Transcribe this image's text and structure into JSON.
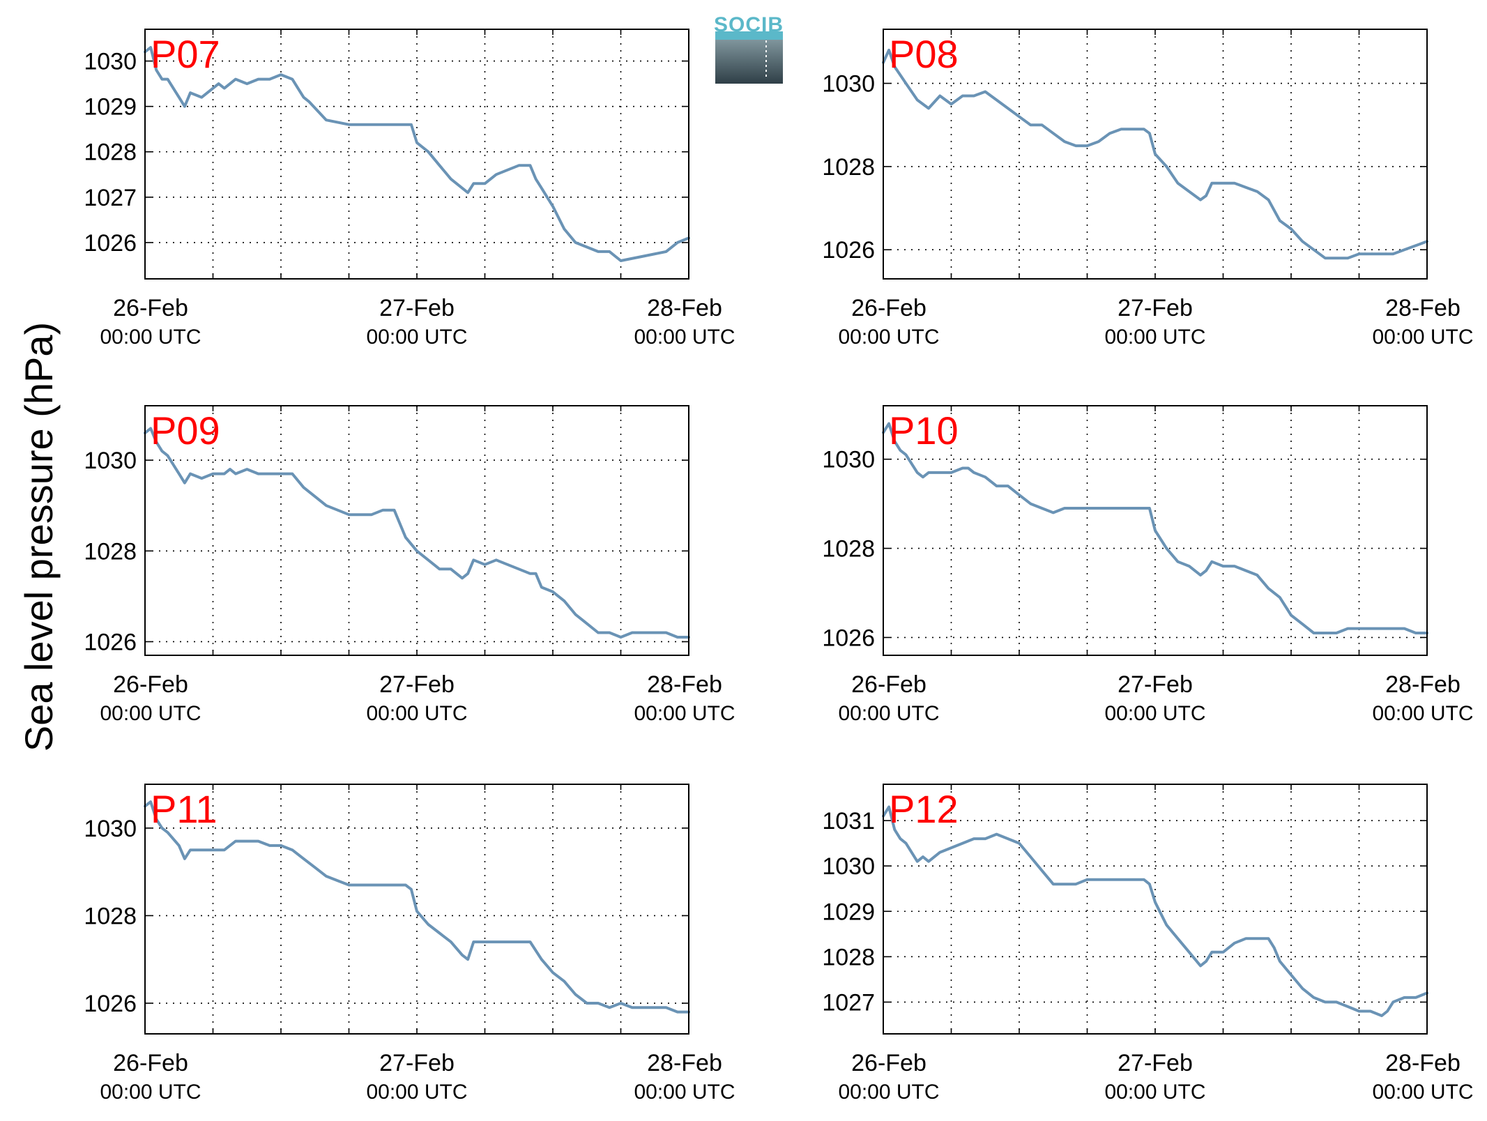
{
  "ylabel": "Sea level pressure (hPa)",
  "logo": {
    "text": "SOCIB"
  },
  "colors": {
    "line": "#6a93b5",
    "panel_label": "#ff0000",
    "logo_top": "#5bb8c9",
    "logo_bottom": "#2f3f47"
  },
  "x_tick_labels": [
    {
      "date": "26-Feb",
      "time": "00:00 UTC"
    },
    {
      "date": "27-Feb",
      "time": "00:00 UTC"
    },
    {
      "date": "28-Feb",
      "time": "00:00 UTC"
    }
  ],
  "chart_data": [
    {
      "type": "line",
      "panel_label": "P07",
      "x_range_hours": [
        0,
        48
      ],
      "ylim": [
        1025.2,
        1030.7
      ],
      "yticks": [
        1026,
        1027,
        1028,
        1029,
        1030
      ],
      "grid": true,
      "series": [
        {
          "x_hours": [
            0,
            0.5,
            1,
            1.5,
            2,
            3,
            3.5,
            4,
            5,
            6,
            6.5,
            7,
            8,
            9,
            10,
            11,
            12,
            13,
            14,
            14.5,
            16,
            18,
            20,
            22,
            23.5,
            24,
            25,
            26,
            27,
            28,
            28.5,
            29,
            30,
            31,
            32,
            33,
            34,
            34.5,
            35,
            36,
            37,
            38,
            39,
            40,
            41,
            41.5,
            42,
            44,
            46,
            47,
            48
          ],
          "y": [
            1030.2,
            1030.3,
            1029.8,
            1029.6,
            1029.6,
            1029.2,
            1029.0,
            1029.3,
            1029.2,
            1029.4,
            1029.5,
            1029.4,
            1029.6,
            1029.5,
            1029.6,
            1029.6,
            1029.7,
            1029.6,
            1029.2,
            1029.1,
            1028.7,
            1028.6,
            1028.6,
            1028.6,
            1028.6,
            1028.2,
            1028.0,
            1027.7,
            1027.4,
            1027.2,
            1027.1,
            1027.3,
            1027.3,
            1027.5,
            1027.6,
            1027.7,
            1027.7,
            1027.4,
            1027.2,
            1026.8,
            1026.3,
            1026.0,
            1025.9,
            1025.8,
            1025.8,
            1025.7,
            1025.6,
            1025.7,
            1025.8,
            1026.0,
            1026.1
          ]
        }
      ]
    },
    {
      "type": "line",
      "panel_label": "P08",
      "x_range_hours": [
        0,
        48
      ],
      "ylim": [
        1025.3,
        1031.3
      ],
      "yticks": [
        1026,
        1028,
        1030
      ],
      "grid": true,
      "series": [
        {
          "x_hours": [
            0,
            0.5,
            1,
            1.5,
            2,
            3,
            4,
            5,
            6,
            7,
            8,
            9,
            10,
            11,
            12,
            13,
            14,
            15,
            16,
            17,
            18,
            19,
            20,
            21,
            22,
            23,
            23.5,
            24,
            25,
            26,
            27,
            28,
            28.5,
            29,
            30,
            31,
            32,
            33,
            34,
            35,
            36,
            37,
            38,
            39,
            40,
            41,
            42,
            43,
            44,
            45,
            46,
            47,
            48
          ],
          "y": [
            1030.5,
            1030.8,
            1030.4,
            1030.2,
            1030.0,
            1029.6,
            1029.4,
            1029.7,
            1029.5,
            1029.7,
            1029.7,
            1029.8,
            1029.6,
            1029.4,
            1029.2,
            1029.0,
            1029.0,
            1028.8,
            1028.6,
            1028.5,
            1028.5,
            1028.6,
            1028.8,
            1028.9,
            1028.9,
            1028.9,
            1028.8,
            1028.3,
            1028.0,
            1027.6,
            1027.4,
            1027.2,
            1027.3,
            1027.6,
            1027.6,
            1027.6,
            1027.5,
            1027.4,
            1027.2,
            1026.7,
            1026.5,
            1026.2,
            1026.0,
            1025.8,
            1025.8,
            1025.8,
            1025.9,
            1025.9,
            1025.9,
            1025.9,
            1026.0,
            1026.1,
            1026.2
          ]
        }
      ]
    },
    {
      "type": "line",
      "panel_label": "P09",
      "x_range_hours": [
        0,
        48
      ],
      "ylim": [
        1025.7,
        1031.2
      ],
      "yticks": [
        1026,
        1028,
        1030
      ],
      "grid": true,
      "series": [
        {
          "x_hours": [
            0,
            0.5,
            1,
            1.5,
            2,
            3,
            3.5,
            4,
            5,
            6,
            7,
            7.5,
            8,
            9,
            10,
            12,
            13,
            14,
            15,
            16,
            17,
            18,
            19,
            20,
            21,
            21.5,
            22,
            23,
            24,
            25,
            26,
            27,
            28,
            28.5,
            29,
            30,
            31,
            32,
            33,
            34,
            34.5,
            35,
            36,
            37,
            38,
            39,
            40,
            41,
            42,
            43,
            44,
            45,
            46,
            47,
            48
          ],
          "y": [
            1030.6,
            1030.7,
            1030.4,
            1030.2,
            1030.1,
            1029.7,
            1029.5,
            1029.7,
            1029.6,
            1029.7,
            1029.7,
            1029.8,
            1029.7,
            1029.8,
            1029.7,
            1029.7,
            1029.7,
            1029.4,
            1029.2,
            1029.0,
            1028.9,
            1028.8,
            1028.8,
            1028.8,
            1028.9,
            1028.9,
            1028.9,
            1028.3,
            1028.0,
            1027.8,
            1027.6,
            1027.6,
            1027.4,
            1027.5,
            1027.8,
            1027.7,
            1027.8,
            1027.7,
            1027.6,
            1027.5,
            1027.5,
            1027.2,
            1027.1,
            1026.9,
            1026.6,
            1026.4,
            1026.2,
            1026.2,
            1026.1,
            1026.2,
            1026.2,
            1026.2,
            1026.2,
            1026.1,
            1026.1
          ]
        }
      ]
    },
    {
      "type": "line",
      "panel_label": "P10",
      "x_range_hours": [
        0,
        48
      ],
      "ylim": [
        1025.6,
        1031.2
      ],
      "yticks": [
        1026,
        1028,
        1030
      ],
      "grid": true,
      "series": [
        {
          "x_hours": [
            0,
            0.5,
            1,
            1.5,
            2,
            3,
            3.5,
            4,
            5,
            6,
            7,
            7.5,
            8,
            9,
            10,
            11,
            12,
            13,
            14,
            15,
            16,
            17,
            18,
            19,
            20,
            21,
            22,
            23,
            23.5,
            24,
            25,
            26,
            27,
            28,
            28.5,
            29,
            30,
            31,
            32,
            33,
            34,
            35,
            36,
            37,
            38,
            39,
            40,
            41,
            42,
            43,
            44,
            45,
            46,
            47,
            48
          ],
          "y": [
            1030.6,
            1030.8,
            1030.4,
            1030.2,
            1030.1,
            1029.7,
            1029.6,
            1029.7,
            1029.7,
            1029.7,
            1029.8,
            1029.8,
            1029.7,
            1029.6,
            1029.4,
            1029.4,
            1029.2,
            1029.0,
            1028.9,
            1028.8,
            1028.9,
            1028.9,
            1028.9,
            1028.9,
            1028.9,
            1028.9,
            1028.9,
            1028.9,
            1028.9,
            1028.4,
            1028.0,
            1027.7,
            1027.6,
            1027.4,
            1027.5,
            1027.7,
            1027.6,
            1027.6,
            1027.5,
            1027.4,
            1027.1,
            1026.9,
            1026.5,
            1026.3,
            1026.1,
            1026.1,
            1026.1,
            1026.2,
            1026.2,
            1026.2,
            1026.2,
            1026.2,
            1026.2,
            1026.1,
            1026.1
          ]
        }
      ]
    },
    {
      "type": "line",
      "panel_label": "P11",
      "x_range_hours": [
        0,
        48
      ],
      "ylim": [
        1025.3,
        1031.0
      ],
      "yticks": [
        1026,
        1028,
        1030
      ],
      "grid": true,
      "series": [
        {
          "x_hours": [
            0,
            0.5,
            1,
            1.5,
            2,
            3,
            3.5,
            4,
            5,
            6,
            6.5,
            7,
            8,
            9,
            10,
            11,
            12,
            13,
            14,
            15,
            16,
            17,
            18,
            19,
            20,
            21,
            22,
            23,
            23.5,
            24,
            25,
            26,
            27,
            28,
            28.5,
            29,
            30,
            31,
            32,
            33,
            34,
            35,
            36,
            37,
            38,
            39,
            40,
            41,
            42,
            43,
            44,
            45,
            46,
            47,
            48
          ],
          "y": [
            1030.5,
            1030.6,
            1030.2,
            1030.0,
            1029.9,
            1029.6,
            1029.3,
            1029.5,
            1029.5,
            1029.5,
            1029.5,
            1029.5,
            1029.7,
            1029.7,
            1029.7,
            1029.6,
            1029.6,
            1029.5,
            1029.3,
            1029.1,
            1028.9,
            1028.8,
            1028.7,
            1028.7,
            1028.7,
            1028.7,
            1028.7,
            1028.7,
            1028.6,
            1028.1,
            1027.8,
            1027.6,
            1027.4,
            1027.1,
            1027.0,
            1027.4,
            1027.4,
            1027.4,
            1027.4,
            1027.4,
            1027.4,
            1027.0,
            1026.7,
            1026.5,
            1026.2,
            1026.0,
            1026.0,
            1025.9,
            1026.0,
            1025.9,
            1025.9,
            1025.9,
            1025.9,
            1025.8,
            1025.8
          ]
        }
      ]
    },
    {
      "type": "line",
      "panel_label": "P12",
      "x_range_hours": [
        0,
        48
      ],
      "ylim": [
        1026.3,
        1031.8
      ],
      "yticks": [
        1027,
        1028,
        1029,
        1030,
        1031
      ],
      "grid": true,
      "series": [
        {
          "x_hours": [
            0,
            0.5,
            1,
            1.5,
            2,
            3,
            3.5,
            4,
            5,
            6,
            7,
            8,
            9,
            10,
            11,
            12,
            13,
            14,
            15,
            16,
            17,
            18,
            19,
            20,
            21,
            22,
            23,
            23.5,
            24,
            25,
            26,
            27,
            28,
            28.5,
            29,
            30,
            31,
            32,
            33,
            34,
            34.5,
            35,
            36,
            37,
            38,
            39,
            40,
            41,
            42,
            43,
            44,
            44.5,
            45,
            46,
            47,
            48
          ],
          "y": [
            1031.1,
            1031.3,
            1030.8,
            1030.6,
            1030.5,
            1030.1,
            1030.2,
            1030.1,
            1030.3,
            1030.4,
            1030.5,
            1030.6,
            1030.6,
            1030.7,
            1030.6,
            1030.5,
            1030.2,
            1029.9,
            1029.6,
            1029.6,
            1029.6,
            1029.7,
            1029.7,
            1029.7,
            1029.7,
            1029.7,
            1029.7,
            1029.6,
            1029.2,
            1028.7,
            1028.4,
            1028.1,
            1027.8,
            1027.9,
            1028.1,
            1028.1,
            1028.3,
            1028.4,
            1028.4,
            1028.4,
            1028.2,
            1027.9,
            1027.6,
            1027.3,
            1027.1,
            1027.0,
            1027.0,
            1026.9,
            1026.8,
            1026.8,
            1026.7,
            1026.8,
            1027.0,
            1027.1,
            1027.1,
            1027.2
          ]
        }
      ]
    }
  ]
}
